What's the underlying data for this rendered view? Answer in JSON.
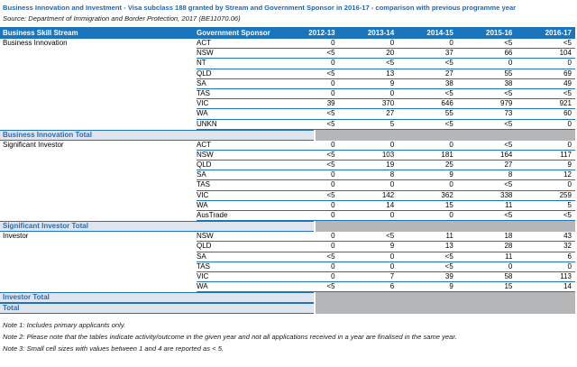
{
  "title": "Business Innovation and Investment - Visa subclass 188 granted by Stream and Government Sponsor in 2016-17 - comparison with previous programme year",
  "source": "Source: Department of Immigration and Border Protection, 2017 (BE11070.06)",
  "colors": {
    "header_bg": "#1B75BC",
    "row_border": "#2273B6",
    "total_row_bg": "#DFE5EE",
    "total_row_text": "#2B6CB0",
    "suppressed_gray": "#B4B6B8",
    "title_text": "#1F66AC"
  },
  "table": {
    "columns": {
      "stream": "Business Skill Stream",
      "sponsor": "Government Sponsor",
      "years": [
        "2012-13",
        "2013-14",
        "2014-15",
        "2015-16",
        "2016-17"
      ]
    },
    "rows": [
      {
        "type": "data",
        "stream": "Business Innovation",
        "sponsor": "ACT",
        "values": [
          "0",
          "0",
          "0",
          "<5",
          "<5"
        ]
      },
      {
        "type": "data",
        "stream": "",
        "sponsor": "NSW",
        "values": [
          "<5",
          "20",
          "37",
          "66",
          "104"
        ]
      },
      {
        "type": "data",
        "stream": "",
        "sponsor": "NT",
        "values": [
          "0",
          "<5",
          "<5",
          "0",
          "0"
        ]
      },
      {
        "type": "data",
        "stream": "",
        "sponsor": "QLD",
        "values": [
          "<5",
          "13",
          "27",
          "55",
          "69"
        ]
      },
      {
        "type": "data",
        "stream": "",
        "sponsor": "SA",
        "values": [
          "0",
          "9",
          "38",
          "38",
          "49"
        ]
      },
      {
        "type": "data",
        "stream": "",
        "sponsor": "TAS",
        "values": [
          "0",
          "0",
          "<5",
          "<5",
          "<5"
        ]
      },
      {
        "type": "data",
        "stream": "",
        "sponsor": "VIC",
        "values": [
          "39",
          "370",
          "646",
          "979",
          "921"
        ]
      },
      {
        "type": "data",
        "stream": "",
        "sponsor": "WA",
        "values": [
          "<5",
          "27",
          "55",
          "73",
          "60"
        ]
      },
      {
        "type": "data",
        "stream": "",
        "sponsor": "UNKN",
        "values": [
          "<5",
          "5",
          "<5",
          "<5",
          "0"
        ]
      },
      {
        "type": "total",
        "label": "Business Innovation Total"
      },
      {
        "type": "data",
        "stream": "Significant Investor",
        "sponsor": "ACT",
        "values": [
          "0",
          "0",
          "0",
          "<5",
          "0"
        ]
      },
      {
        "type": "data",
        "stream": "",
        "sponsor": "NSW",
        "values": [
          "<5",
          "103",
          "181",
          "164",
          "117"
        ]
      },
      {
        "type": "data",
        "stream": "",
        "sponsor": "QLD",
        "values": [
          "<5",
          "19",
          "25",
          "27",
          "9"
        ]
      },
      {
        "type": "data",
        "stream": "",
        "sponsor": "SA",
        "values": [
          "0",
          "8",
          "9",
          "8",
          "12"
        ]
      },
      {
        "type": "data",
        "stream": "",
        "sponsor": "TAS",
        "values": [
          "0",
          "0",
          "0",
          "<5",
          "0"
        ]
      },
      {
        "type": "data",
        "stream": "",
        "sponsor": "VIC",
        "values": [
          "<5",
          "142",
          "362",
          "338",
          "259"
        ]
      },
      {
        "type": "data",
        "stream": "",
        "sponsor": "WA",
        "values": [
          "0",
          "14",
          "15",
          "11",
          "5"
        ]
      },
      {
        "type": "data",
        "stream": "",
        "sponsor": "AusTrade",
        "values": [
          "0",
          "0",
          "0",
          "<5",
          "<5"
        ]
      },
      {
        "type": "total",
        "label": "Significant Investor Total"
      },
      {
        "type": "data",
        "stream": "Investor",
        "sponsor": "NSW",
        "values": [
          "0",
          "<5",
          "11",
          "18",
          "43"
        ]
      },
      {
        "type": "data",
        "stream": "",
        "sponsor": "QLD",
        "values": [
          "0",
          "9",
          "13",
          "28",
          "32"
        ]
      },
      {
        "type": "data",
        "stream": "",
        "sponsor": "SA",
        "values": [
          "<5",
          "0",
          "<5",
          "11",
          "6"
        ]
      },
      {
        "type": "data",
        "stream": "",
        "sponsor": "TAS",
        "values": [
          "0",
          "0",
          "<5",
          "0",
          "0"
        ]
      },
      {
        "type": "data",
        "stream": "",
        "sponsor": "VIC",
        "values": [
          "0",
          "7",
          "39",
          "58",
          "113"
        ]
      },
      {
        "type": "data",
        "stream": "",
        "sponsor": "WA",
        "values": [
          "<5",
          "6",
          "9",
          "15",
          "14"
        ]
      },
      {
        "type": "total",
        "label": "Investor Total"
      },
      {
        "type": "total",
        "label": "Total"
      }
    ]
  },
  "notes": [
    "Note 1: Includes primary applicants only.",
    "Note 2: Please note that the tables indicate activity/outcome in the given year and not all applications received in a year are finalised in the same year.",
    "Note 3: Small cell sizes with values between 1 and 4 are reported as < 5."
  ]
}
